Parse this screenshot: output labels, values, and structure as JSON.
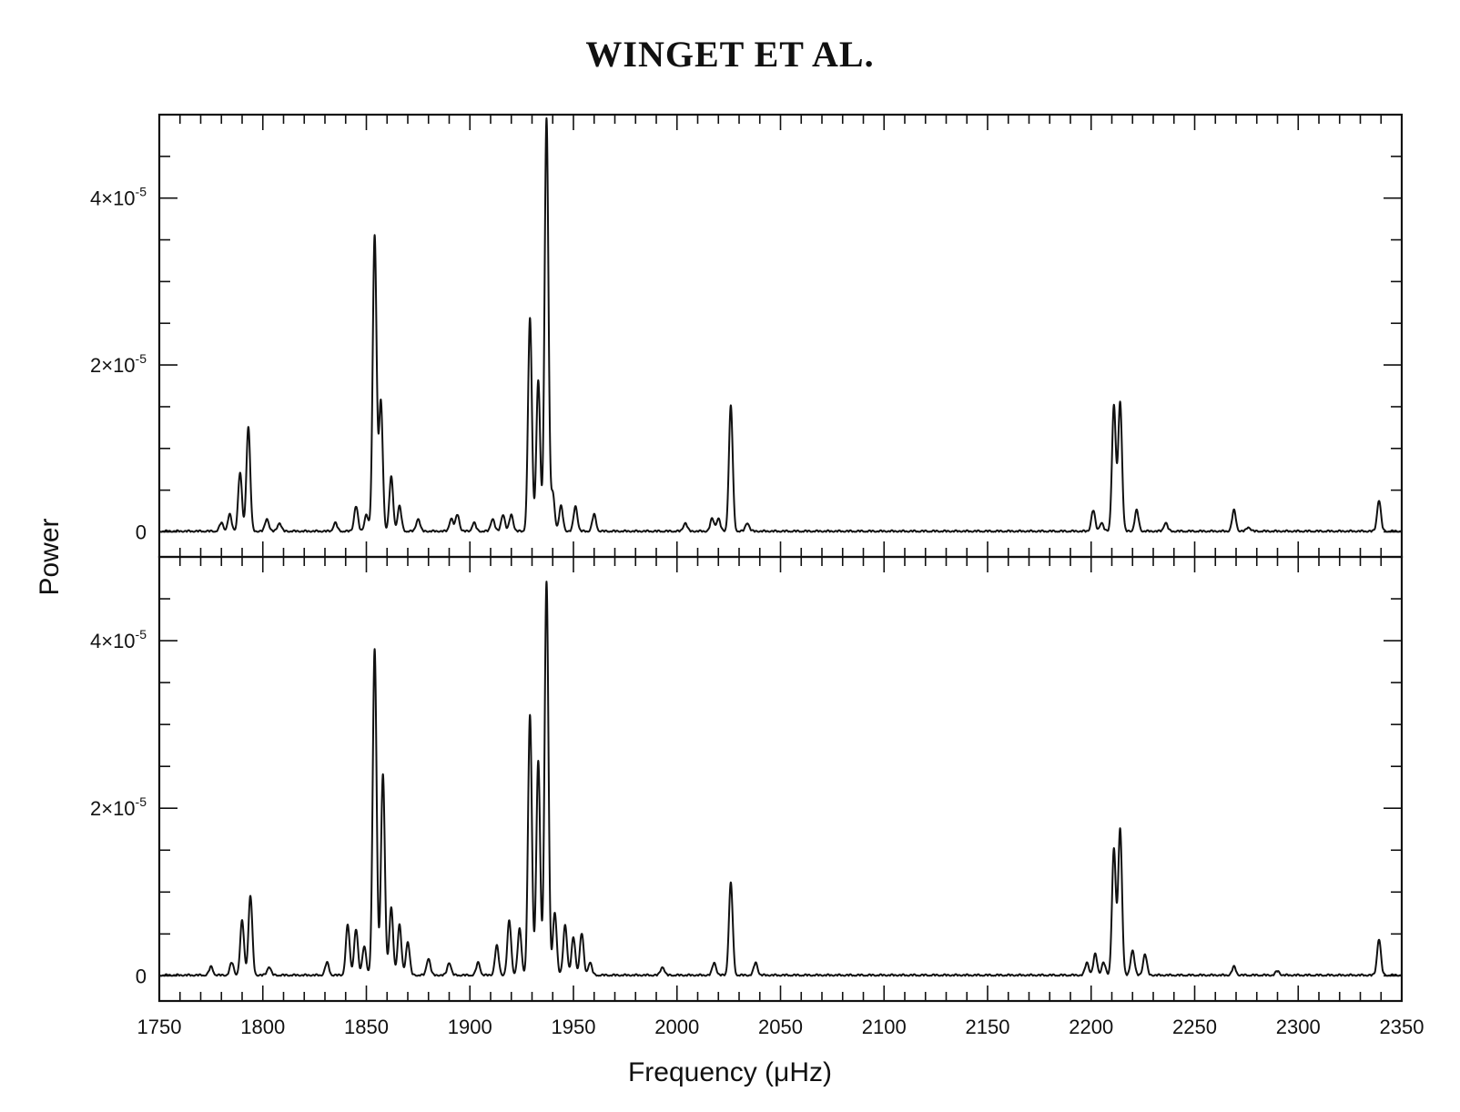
{
  "page_title": "WINGET ET AL.",
  "chart_data": {
    "type": "line",
    "xlabel": "Frequency (μHz)",
    "ylabel": "Power",
    "xlim": [
      1750,
      2350
    ],
    "ylim": [
      -0.3,
      5.0
    ],
    "y_units_note": "×10⁻⁵",
    "x_ticks": [
      1750,
      1800,
      1850,
      1900,
      1950,
      2000,
      2050,
      2100,
      2150,
      2200,
      2250,
      2300,
      2350
    ],
    "x_tick_labels": [
      "1750",
      "1800",
      "1850",
      "1900",
      "1950",
      "2000",
      "2050",
      "2100",
      "2150",
      "2200",
      "2250",
      "2300",
      "2350"
    ],
    "y_ticks": [
      0,
      2,
      4
    ],
    "y_tick_labels": [
      {
        "base": "0",
        "exp": ""
      },
      {
        "base": "2×10",
        "exp": "-5"
      },
      {
        "base": "4×10",
        "exp": "-5"
      }
    ],
    "panels": [
      {
        "peaks": [
          [
            1780,
            0.1
          ],
          [
            1784,
            0.2
          ],
          [
            1789,
            0.7
          ],
          [
            1793,
            1.25
          ],
          [
            1802,
            0.15
          ],
          [
            1808,
            0.1
          ],
          [
            1835,
            0.1
          ],
          [
            1845,
            0.3
          ],
          [
            1850,
            0.2
          ],
          [
            1854,
            3.55
          ],
          [
            1857,
            1.55
          ],
          [
            1862,
            0.65
          ],
          [
            1866,
            0.3
          ],
          [
            1875,
            0.15
          ],
          [
            1891,
            0.15
          ],
          [
            1894,
            0.2
          ],
          [
            1902,
            0.1
          ],
          [
            1911,
            0.15
          ],
          [
            1916,
            0.2
          ],
          [
            1920,
            0.2
          ],
          [
            1929,
            2.55
          ],
          [
            1933,
            1.8
          ],
          [
            1937,
            4.95
          ],
          [
            1940,
            0.45
          ],
          [
            1944,
            0.3
          ],
          [
            1951,
            0.3
          ],
          [
            1960,
            0.2
          ],
          [
            2004,
            0.1
          ],
          [
            2017,
            0.15
          ],
          [
            2020,
            0.15
          ],
          [
            2026,
            1.5
          ],
          [
            2034,
            0.1
          ],
          [
            2201,
            0.25
          ],
          [
            2205,
            0.1
          ],
          [
            2211,
            1.5
          ],
          [
            2214,
            1.55
          ],
          [
            2222,
            0.25
          ],
          [
            2236,
            0.1
          ],
          [
            2269,
            0.25
          ],
          [
            2276,
            0.05
          ],
          [
            2339,
            0.37
          ]
        ]
      },
      {
        "peaks": [
          [
            1775,
            0.1
          ],
          [
            1785,
            0.15
          ],
          [
            1790,
            0.65
          ],
          [
            1794,
            0.95
          ],
          [
            1803,
            0.1
          ],
          [
            1831,
            0.15
          ],
          [
            1841,
            0.6
          ],
          [
            1845,
            0.55
          ],
          [
            1849,
            0.35
          ],
          [
            1854,
            3.9
          ],
          [
            1858,
            2.4
          ],
          [
            1862,
            0.8
          ],
          [
            1866,
            0.6
          ],
          [
            1870,
            0.4
          ],
          [
            1880,
            0.2
          ],
          [
            1890,
            0.15
          ],
          [
            1904,
            0.15
          ],
          [
            1913,
            0.35
          ],
          [
            1919,
            0.65
          ],
          [
            1924,
            0.55
          ],
          [
            1929,
            3.1
          ],
          [
            1933,
            2.55
          ],
          [
            1937,
            4.7
          ],
          [
            1941,
            0.75
          ],
          [
            1946,
            0.6
          ],
          [
            1950,
            0.45
          ],
          [
            1954,
            0.5
          ],
          [
            1958,
            0.15
          ],
          [
            1993,
            0.1
          ],
          [
            2018,
            0.15
          ],
          [
            2026,
            1.1
          ],
          [
            2038,
            0.15
          ],
          [
            2198,
            0.15
          ],
          [
            2202,
            0.25
          ],
          [
            2206,
            0.15
          ],
          [
            2211,
            1.5
          ],
          [
            2214,
            1.75
          ],
          [
            2220,
            0.3
          ],
          [
            2226,
            0.25
          ],
          [
            2269,
            0.1
          ],
          [
            2290,
            0.05
          ],
          [
            2339,
            0.43
          ]
        ]
      }
    ]
  }
}
